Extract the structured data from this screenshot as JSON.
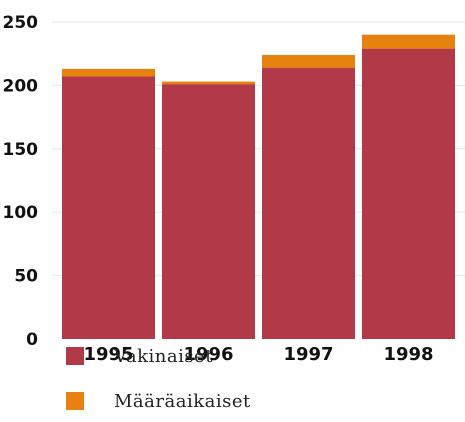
{
  "chart_data": {
    "type": "bar",
    "stacked": true,
    "categories": [
      "1995",
      "1996",
      "1997",
      "1998"
    ],
    "series": [
      {
        "name": "Vakinaiset",
        "values": [
          207,
          201,
          214,
          229
        ],
        "color": "#b23a48"
      },
      {
        "name": "Määräaikaiset",
        "values": [
          6,
          2,
          10,
          11
        ],
        "color": "#e8820e"
      }
    ],
    "yticks": [
      "0",
      "50",
      "100",
      "150",
      "200",
      "250"
    ],
    "ylim": [
      0,
      250
    ],
    "grid": true,
    "legend_position": "bottom-left"
  }
}
